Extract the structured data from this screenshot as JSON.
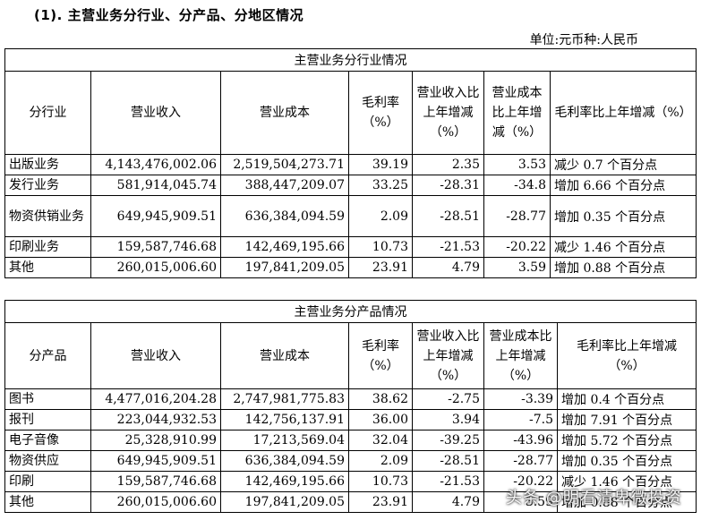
{
  "heading": "(1). 主营业务分行业、分产品、分地区情况",
  "unit": "单位:元币种:人民币",
  "industry_table": {
    "caption": "主营业务分行业情况",
    "headers": [
      "分行业",
      "营业收入",
      "营业成本",
      "毛利率（%）",
      "营业收入比上年增减（%）",
      "营业成本比上年增减（%）",
      "毛利率比上年增减（%）"
    ],
    "rows": [
      [
        "出版业务",
        "4,143,476,002.06",
        "2,519,504,273.71",
        "39.19",
        "2.35",
        "3.53",
        "减少 0.7 个百分点"
      ],
      [
        "发行业务",
        "581,914,045.74",
        "388,447,209.07",
        "33.25",
        "-28.31",
        "-34.8",
        "增加 6.66 个百分点"
      ],
      [
        "物资供销业务",
        "649,945,909.51",
        "636,384,094.59",
        "2.09",
        "-28.51",
        "-28.77",
        "增加 0.35 个百分点"
      ],
      [
        "印刷业务",
        "159,587,746.68",
        "142,469,195.66",
        "10.73",
        "-21.53",
        "-20.22",
        "减少 1.46 个百分点"
      ],
      [
        "其他",
        "260,015,006.60",
        "197,841,209.05",
        "23.91",
        "4.79",
        "3.59",
        "增加 0.88 个百分点"
      ]
    ]
  },
  "product_table": {
    "caption": "主营业务分产品情况",
    "headers": [
      "分产品",
      "营业收入",
      "营业成本",
      "毛利率（%）",
      "营业收入比上年增减（%）",
      "营业成本比上年增减（%）",
      "毛利率比上年增减（%）"
    ],
    "rows": [
      [
        "图书",
        "4,477,016,204.28",
        "2,747,981,775.83",
        "38.62",
        "-2.75",
        "-3.39",
        "增加 0.4 个百分点"
      ],
      [
        "报刊",
        "223,044,932.53",
        "142,756,137.91",
        "36.00",
        "3.94",
        "-7.5",
        "增加 7.91 个百分点"
      ],
      [
        "电子音像",
        "25,328,910.99",
        "17,213,569.04",
        "32.04",
        "-39.25",
        "-43.96",
        "增加 5.72 个百分点"
      ],
      [
        "物资供应",
        "649,945,909.51",
        "636,384,094.59",
        "2.09",
        "-28.51",
        "-28.77",
        "增加 0.35 个百分点"
      ],
      [
        "印刷",
        "159,587,746.68",
        "142,469,195.66",
        "10.73",
        "-21.53",
        "-20.22",
        "减少 1.46 个百分点"
      ],
      [
        "其他",
        "260,015,006.60",
        "197,841,209.05",
        "23.91",
        "4.79",
        "3.59",
        "增加 0.88 个百分点"
      ]
    ]
  },
  "watermark": "头条 @明看清卑微投资"
}
